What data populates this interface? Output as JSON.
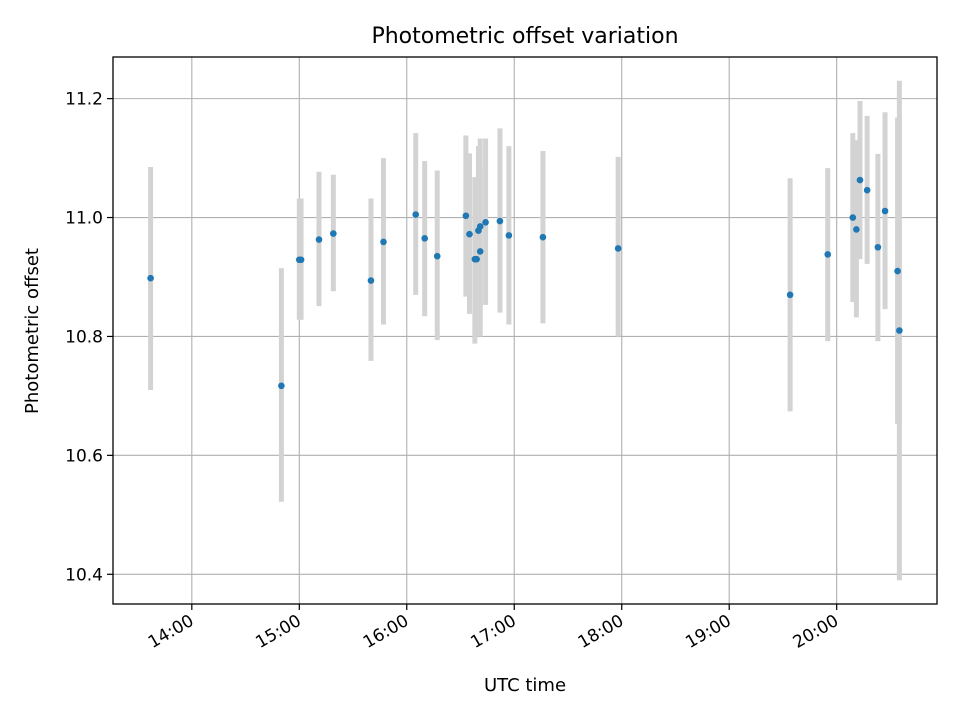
{
  "chart_data": {
    "type": "scatter",
    "title": "Photometric offset variation",
    "xlabel": "UTC time",
    "ylabel": "Photometric offset",
    "x_unit": "UTC time (HH:MM)",
    "xlim": [
      "13:16",
      "20:56"
    ],
    "ylim": [
      10.35,
      11.27
    ],
    "xticks": [
      "14:00",
      "15:00",
      "16:00",
      "17:00",
      "18:00",
      "19:00",
      "20:00"
    ],
    "yticks": [
      "10.4",
      "10.6",
      "10.8",
      "11.0",
      "11.2"
    ],
    "grid": true,
    "colors": {
      "marker": "#1f77b4",
      "errorbar": "#d3d3d3",
      "grid": "#b0b0b0",
      "axes": "#000000"
    },
    "points": [
      {
        "x": "13:37",
        "y": 10.898,
        "ylo": 10.71,
        "yhi": 11.085
      },
      {
        "x": "14:50",
        "y": 10.717,
        "ylo": 10.522,
        "yhi": 10.915
      },
      {
        "x": "15:00",
        "y": 10.929,
        "ylo": 10.828,
        "yhi": 11.032
      },
      {
        "x": "15:01",
        "y": 10.929,
        "ylo": 10.828,
        "yhi": 11.032
      },
      {
        "x": "15:11",
        "y": 10.963,
        "ylo": 10.851,
        "yhi": 11.077
      },
      {
        "x": "15:19",
        "y": 10.973,
        "ylo": 10.876,
        "yhi": 11.072
      },
      {
        "x": "15:40",
        "y": 10.894,
        "ylo": 10.759,
        "yhi": 11.032
      },
      {
        "x": "15:47",
        "y": 10.959,
        "ylo": 10.82,
        "yhi": 11.1
      },
      {
        "x": "16:05",
        "y": 11.005,
        "ylo": 10.87,
        "yhi": 11.142
      },
      {
        "x": "16:10",
        "y": 10.965,
        "ylo": 10.834,
        "yhi": 11.095
      },
      {
        "x": "16:17",
        "y": 10.935,
        "ylo": 10.794,
        "yhi": 11.079
      },
      {
        "x": "16:33",
        "y": 11.003,
        "ylo": 10.867,
        "yhi": 11.138
      },
      {
        "x": "16:35",
        "y": 10.972,
        "ylo": 10.838,
        "yhi": 11.108
      },
      {
        "x": "16:38",
        "y": 10.93,
        "ylo": 10.788,
        "yhi": 11.068
      },
      {
        "x": "16:39",
        "y": 10.93,
        "ylo": 10.8,
        "yhi": 11.06
      },
      {
        "x": "16:40",
        "y": 10.978,
        "ylo": 10.84,
        "yhi": 11.12
      },
      {
        "x": "16:41",
        "y": 10.985,
        "ylo": 10.85,
        "yhi": 11.133
      },
      {
        "x": "16:41",
        "y": 10.943,
        "ylo": 10.8,
        "yhi": 11.085
      },
      {
        "x": "16:44",
        "y": 10.992,
        "ylo": 10.853,
        "yhi": 11.133
      },
      {
        "x": "16:52",
        "y": 10.994,
        "ylo": 10.84,
        "yhi": 11.15
      },
      {
        "x": "16:57",
        "y": 10.97,
        "ylo": 10.82,
        "yhi": 11.12
      },
      {
        "x": "17:16",
        "y": 10.967,
        "ylo": 10.822,
        "yhi": 11.112
      },
      {
        "x": "17:58",
        "y": 10.948,
        "ylo": 10.8,
        "yhi": 11.102
      },
      {
        "x": "19:34",
        "y": 10.87,
        "ylo": 10.674,
        "yhi": 11.066
      },
      {
        "x": "19:55",
        "y": 10.938,
        "ylo": 10.792,
        "yhi": 11.083
      },
      {
        "x": "20:09",
        "y": 11.0,
        "ylo": 10.858,
        "yhi": 11.142
      },
      {
        "x": "20:11",
        "y": 10.98,
        "ylo": 10.832,
        "yhi": 11.13
      },
      {
        "x": "20:13",
        "y": 11.063,
        "ylo": 10.93,
        "yhi": 11.196
      },
      {
        "x": "20:17",
        "y": 11.046,
        "ylo": 10.922,
        "yhi": 11.171
      },
      {
        "x": "20:23",
        "y": 10.95,
        "ylo": 10.792,
        "yhi": 11.107
      },
      {
        "x": "20:27",
        "y": 11.011,
        "ylo": 10.846,
        "yhi": 11.177
      },
      {
        "x": "20:34",
        "y": 10.91,
        "ylo": 10.653,
        "yhi": 11.168
      },
      {
        "x": "20:35",
        "y": 10.81,
        "ylo": 10.39,
        "yhi": 11.23
      }
    ]
  }
}
